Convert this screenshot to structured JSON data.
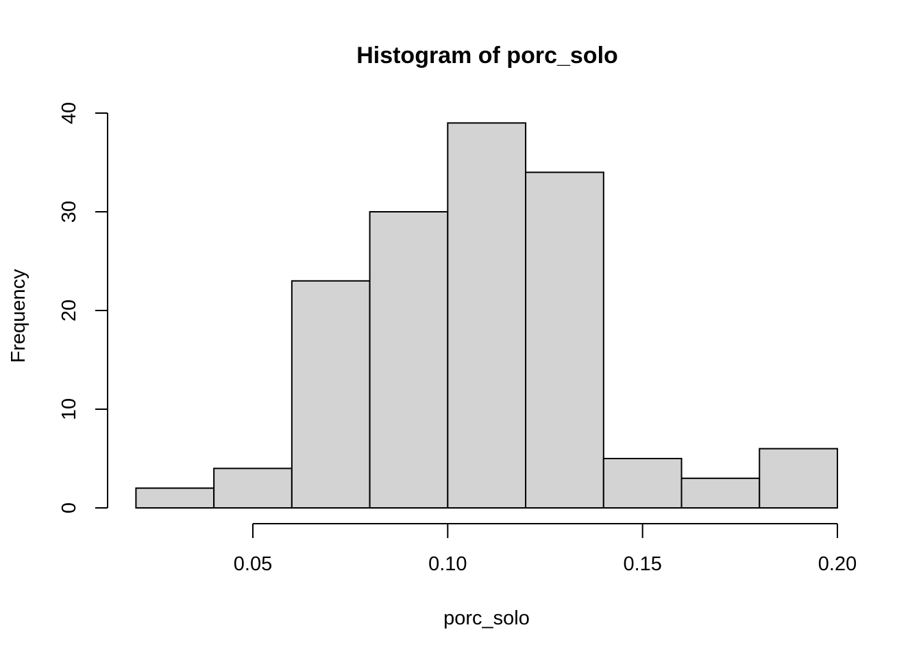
{
  "chart_data": {
    "type": "bar",
    "subtype": "histogram",
    "title": "Histogram of porc_solo",
    "xlabel": "porc_solo",
    "ylabel": "Frequency",
    "bins": [
      {
        "start": 0.02,
        "end": 0.04,
        "count": 2
      },
      {
        "start": 0.04,
        "end": 0.06,
        "count": 4
      },
      {
        "start": 0.06,
        "end": 0.08,
        "count": 23
      },
      {
        "start": 0.08,
        "end": 0.1,
        "count": 30
      },
      {
        "start": 0.1,
        "end": 0.12,
        "count": 39
      },
      {
        "start": 0.12,
        "end": 0.14,
        "count": 34
      },
      {
        "start": 0.14,
        "end": 0.16,
        "count": 5
      },
      {
        "start": 0.16,
        "end": 0.18,
        "count": 3
      },
      {
        "start": 0.18,
        "end": 0.2,
        "count": 6
      }
    ],
    "xticks": [
      0.05,
      0.1,
      0.15,
      0.2
    ],
    "xtick_labels": [
      "0.05",
      "0.10",
      "0.15",
      "0.20"
    ],
    "yticks": [
      0,
      10,
      20,
      30,
      40
    ],
    "ytick_labels": [
      "0",
      "10",
      "20",
      "30",
      "40"
    ],
    "xlim": [
      0.05,
      0.2
    ],
    "ylim": [
      0,
      40
    ],
    "grid": false,
    "bar_color": "#d3d3d3",
    "edge_color": "#000000"
  }
}
